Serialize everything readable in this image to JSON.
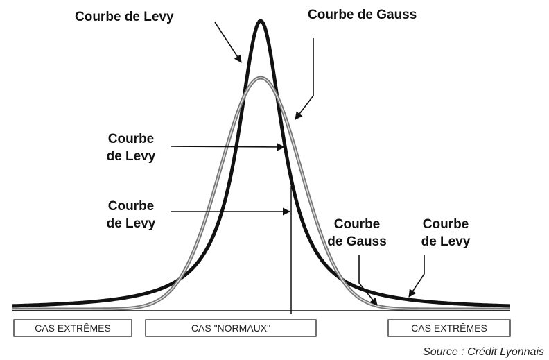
{
  "labels": [
    {
      "lines": [
        "Courbe de Levy"
      ]
    },
    {
      "lines": [
        "Courbe de Gauss"
      ]
    },
    {
      "lines": [
        "Courbe",
        "de Levy"
      ]
    },
    {
      "lines": [
        "Courbe",
        "de Levy"
      ]
    },
    {
      "lines": [
        "Courbe",
        "de Gauss"
      ]
    },
    {
      "lines": [
        "Courbe",
        "de Levy"
      ]
    }
  ],
  "zones": [
    "CAS EXTRÊMES",
    "CAS \"NORMAUX\"",
    "CAS EXTRÊMES"
  ],
  "source": "Source : Crédit Lyonnais"
}
